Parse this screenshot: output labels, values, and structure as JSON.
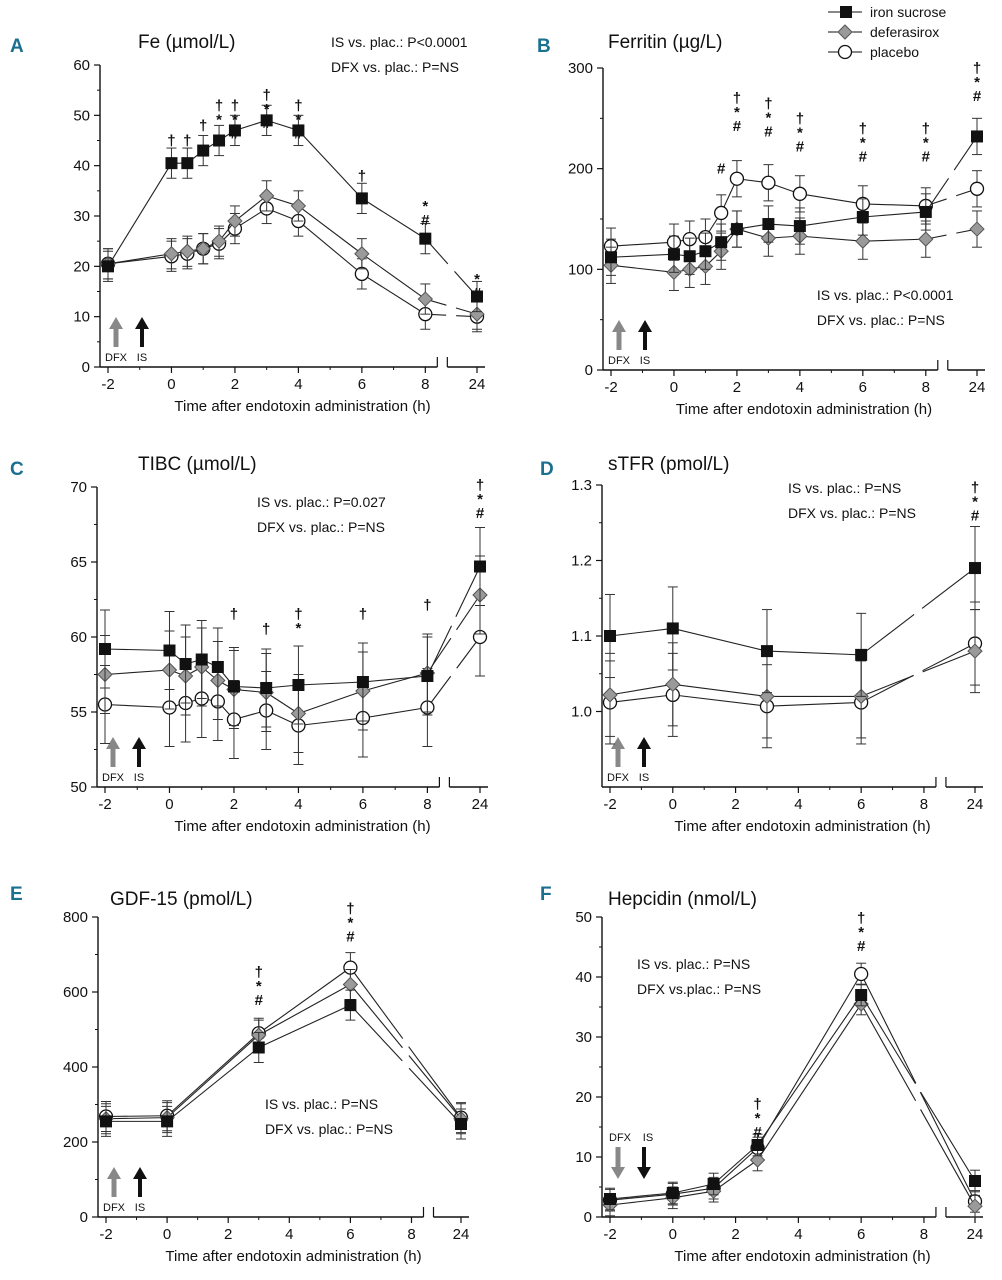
{
  "colors": {
    "panel_letter": "#1b6f8f",
    "iron_sucrose": "#111111",
    "deferasirox": "#9a9a9a",
    "placebo": "#ffffff",
    "dfx_arrow": "#888888",
    "is_arrow": "#111111"
  },
  "legend": {
    "iron_sucrose": "iron sucrose",
    "deferasirox": "deferasirox",
    "placebo": "placebo"
  },
  "common": {
    "xlabel": "Time after endotoxin administration (h)",
    "dfx_label": "DFX",
    "is_label": "IS"
  },
  "chart_data": [
    {
      "id": "A",
      "letter": "A",
      "type": "line",
      "title": "Fe (µmol/L)",
      "ylim": [
        0,
        60
      ],
      "yticks": [
        0,
        10,
        20,
        30,
        40,
        50,
        60
      ],
      "xticks": [
        -2,
        0,
        2,
        4,
        6,
        8,
        24
      ],
      "stats": [
        "IS vs. plac.: P<0.0001",
        "DFX vs. plac.: P=NS"
      ],
      "arrows_top": false,
      "err_sd": 3,
      "series": [
        {
          "name": "iron sucrose",
          "x": [
            -2,
            0,
            0.5,
            1,
            1.5,
            2,
            3,
            4,
            6,
            8,
            24
          ],
          "y": [
            20,
            40.5,
            40.5,
            43,
            45,
            47,
            49,
            47,
            33.5,
            25.5,
            14
          ]
        },
        {
          "name": "deferasirox",
          "x": [
            -2,
            0,
            0.5,
            1,
            1.5,
            2,
            3,
            4,
            6,
            8,
            24
          ],
          "y": [
            20.5,
            22.5,
            23,
            23.5,
            25,
            29,
            34,
            32,
            22.5,
            13.5,
            10.5
          ]
        },
        {
          "name": "placebo",
          "x": [
            -2,
            0,
            0.5,
            1,
            1.5,
            2,
            3,
            4,
            6,
            8,
            24
          ],
          "y": [
            20.5,
            22,
            22.5,
            23.5,
            24.5,
            27.5,
            31.5,
            29,
            18.5,
            10.5,
            10
          ]
        }
      ],
      "annotations": [
        {
          "x": 0,
          "y_top": 44,
          "symbols": [
            "†"
          ]
        },
        {
          "x": 0.5,
          "y_top": 44,
          "symbols": [
            "†"
          ]
        },
        {
          "x": 1,
          "y_top": 47,
          "symbols": [
            "†"
          ]
        },
        {
          "x": 1.5,
          "y_top": 51,
          "symbols": [
            "†",
            "*"
          ]
        },
        {
          "x": 2,
          "y_top": 51,
          "symbols": [
            "†",
            "*",
            "#"
          ]
        },
        {
          "x": 3,
          "y_top": 53,
          "symbols": [
            "†",
            "*",
            "#"
          ]
        },
        {
          "x": 4,
          "y_top": 51,
          "symbols": [
            "†",
            "*",
            "#"
          ]
        },
        {
          "x": 6,
          "y_top": 37,
          "symbols": [
            "†"
          ]
        },
        {
          "x": 8,
          "y_top": 31,
          "symbols": [
            "*",
            "#"
          ]
        },
        {
          "x": 24,
          "y_top": 16.5,
          "symbols": [
            "*",
            "#"
          ]
        }
      ]
    },
    {
      "id": "B",
      "letter": "B",
      "type": "line",
      "title": "Ferritin (µg/L)",
      "ylim": [
        0,
        300
      ],
      "yticks": [
        0,
        100,
        200,
        300
      ],
      "xticks": [
        -2,
        0,
        2,
        4,
        6,
        8,
        24
      ],
      "stats": [
        "IS vs. plac.: P<0.0001",
        "DFX vs. plac.: P=NS"
      ],
      "stats_pos": "bottom-right",
      "arrows_top": false,
      "err_sd": 18,
      "series": [
        {
          "name": "iron sucrose",
          "x": [
            -2,
            0,
            0.5,
            1,
            1.5,
            2,
            3,
            4,
            6,
            8,
            24
          ],
          "y": [
            112,
            115,
            113,
            118,
            127,
            140,
            145,
            143,
            152,
            157,
            232
          ]
        },
        {
          "name": "deferasirox",
          "x": [
            -2,
            0,
            0.5,
            1,
            1.5,
            2,
            3,
            4,
            6,
            8,
            24
          ],
          "y": [
            104,
            97,
            100,
            103,
            118,
            140,
            131,
            133,
            128,
            130,
            140
          ]
        },
        {
          "name": "placebo",
          "x": [
            -2,
            0,
            0.5,
            1,
            1.5,
            2,
            3,
            4,
            6,
            8,
            24
          ],
          "y": [
            123,
            127,
            130,
            132,
            156,
            190,
            186,
            175,
            165,
            163,
            180
          ]
        }
      ],
      "annotations": [
        {
          "x": 1.5,
          "y_top": 195,
          "symbols": [
            "#"
          ]
        },
        {
          "x": 2,
          "y_top": 265,
          "symbols": [
            "†",
            "*",
            "#"
          ]
        },
        {
          "x": 3,
          "y_top": 260,
          "symbols": [
            "†",
            "*",
            "#"
          ]
        },
        {
          "x": 4,
          "y_top": 245,
          "symbols": [
            "†",
            "*",
            "#"
          ]
        },
        {
          "x": 6,
          "y_top": 235,
          "symbols": [
            "†",
            "*",
            "#"
          ]
        },
        {
          "x": 8,
          "y_top": 235,
          "symbols": [
            "†",
            "*",
            "#"
          ]
        },
        {
          "x": 24,
          "y_top": 295,
          "symbols": [
            "†",
            "*",
            "#"
          ]
        }
      ]
    },
    {
      "id": "C",
      "letter": "C",
      "type": "line",
      "title": "TIBC (µmol/L)",
      "ylim": [
        50,
        70
      ],
      "yticks": [
        50,
        55,
        60,
        65,
        70
      ],
      "xticks": [
        -2,
        0,
        2,
        4,
        6,
        8,
        24
      ],
      "stats": [
        "IS vs. plac.: P=0.027",
        "DFX vs. plac.: P=NS"
      ],
      "arrows_top": false,
      "err_sd": 2.6,
      "series": [
        {
          "name": "iron sucrose",
          "x": [
            -2,
            0,
            0.5,
            1,
            1.5,
            2,
            3,
            4,
            6,
            8,
            24
          ],
          "y": [
            59.2,
            59.1,
            58.2,
            58.5,
            58,
            56.7,
            56.6,
            56.8,
            57,
            57.4,
            64.7
          ]
        },
        {
          "name": "deferasirox",
          "x": [
            -2,
            0,
            0.5,
            1,
            1.5,
            2,
            3,
            4,
            6,
            8,
            24
          ],
          "y": [
            57.5,
            57.8,
            57.4,
            58,
            57.1,
            56.5,
            56.3,
            54.9,
            56.4,
            57.6,
            62.8
          ]
        },
        {
          "name": "placebo",
          "x": [
            -2,
            0,
            0.5,
            1,
            1.5,
            2,
            3,
            4,
            6,
            8,
            24
          ],
          "y": [
            55.5,
            55.3,
            55.6,
            55.9,
            55.7,
            54.5,
            55.1,
            54.1,
            54.6,
            55.3,
            60
          ]
        }
      ],
      "annotations": [
        {
          "x": 2,
          "y_top": 61.2,
          "symbols": [
            "†"
          ]
        },
        {
          "x": 3,
          "y_top": 60.2,
          "symbols": [
            "†"
          ]
        },
        {
          "x": 4,
          "y_top": 61.2,
          "symbols": [
            "†",
            "*"
          ]
        },
        {
          "x": 6,
          "y_top": 61.2,
          "symbols": [
            "†"
          ]
        },
        {
          "x": 8,
          "y_top": 61.8,
          "symbols": [
            "†"
          ]
        },
        {
          "x": 24,
          "y_top": 69.8,
          "symbols": [
            "†",
            "*",
            "#"
          ]
        }
      ]
    },
    {
      "id": "D",
      "letter": "D",
      "type": "line",
      "title": "sTFR (pmol/L)",
      "ylim": [
        0.9,
        1.3
      ],
      "yticks": [
        1.0,
        1.1,
        1.2,
        1.3
      ],
      "ytick_labels": [
        "1.0",
        "1.1",
        "1.2",
        "1.3"
      ],
      "xticks": [
        -2,
        0,
        2,
        4,
        6,
        8,
        24
      ],
      "stats": [
        "IS vs. plac.: P=NS",
        "DFX vs. plac.: P=NS"
      ],
      "arrows_top": false,
      "err_sd": 0.055,
      "series": [
        {
          "name": "iron sucrose",
          "x": [
            -2,
            0,
            3,
            6,
            24
          ],
          "y": [
            1.1,
            1.11,
            1.08,
            1.075,
            1.19
          ]
        },
        {
          "name": "deferasirox",
          "x": [
            -2,
            0,
            3,
            6,
            24
          ],
          "y": [
            1.022,
            1.036,
            1.02,
            1.02,
            1.08
          ]
        },
        {
          "name": "placebo",
          "x": [
            -2,
            0,
            3,
            6,
            24
          ],
          "y": [
            1.012,
            1.022,
            1.007,
            1.012,
            1.09
          ]
        }
      ],
      "annotations": [
        {
          "x": 24,
          "y_top": 1.29,
          "symbols": [
            "†",
            "*",
            "#"
          ]
        }
      ]
    },
    {
      "id": "E",
      "letter": "E",
      "type": "line",
      "title": "GDF-15 (pmol/L)",
      "ylim": [
        0,
        800
      ],
      "yticks": [
        0,
        200,
        400,
        600,
        800
      ],
      "xticks": [
        -2,
        0,
        2,
        4,
        6,
        8,
        24
      ],
      "stats": [
        "IS vs. plac.: P=NS",
        "DFX vs. plac.: P=NS"
      ],
      "stats_pos": "bottom-middle",
      "arrows_top": false,
      "err_sd": 40,
      "series": [
        {
          "name": "iron sucrose",
          "x": [
            -2,
            0,
            3,
            6,
            24
          ],
          "y": [
            255,
            255,
            452,
            565,
            248
          ]
        },
        {
          "name": "deferasirox",
          "x": [
            -2,
            0,
            3,
            6,
            24
          ],
          "y": [
            262,
            265,
            485,
            620,
            262
          ]
        },
        {
          "name": "placebo",
          "x": [
            -2,
            0,
            3,
            6,
            24
          ],
          "y": [
            268,
            270,
            490,
            665,
            265
          ]
        }
      ],
      "annotations": [
        {
          "x": 3,
          "y_top": 640,
          "symbols": [
            "†",
            "*",
            "#"
          ]
        },
        {
          "x": 6,
          "y_top": 810,
          "symbols": [
            "†",
            "*",
            "#"
          ]
        }
      ]
    },
    {
      "id": "F",
      "letter": "F",
      "type": "line",
      "title": "Hepcidin (nmol/L)",
      "ylim": [
        0,
        50
      ],
      "yticks": [
        0,
        10,
        20,
        30,
        40,
        50
      ],
      "xticks": [
        -2,
        0,
        2,
        4,
        6,
        8,
        24
      ],
      "stats": [
        "IS vs. plac.: P=NS",
        "DFX vs.plac.: P=NS"
      ],
      "stats_pos": "top-left",
      "arrows_top": true,
      "err_sd": 1.8,
      "series": [
        {
          "name": "iron sucrose",
          "x": [
            -2,
            0,
            1.3,
            2.7,
            6,
            24
          ],
          "y": [
            3,
            4,
            5.5,
            12,
            37,
            6
          ]
        },
        {
          "name": "deferasirox",
          "x": [
            -2,
            0,
            1.3,
            2.7,
            6,
            24
          ],
          "y": [
            2,
            3.2,
            4.3,
            9.5,
            35.5,
            1.8
          ]
        },
        {
          "name": "placebo",
          "x": [
            -2,
            0,
            1.3,
            2.7,
            6,
            24
          ],
          "y": [
            2.8,
            3.8,
            4.8,
            11.5,
            40.5,
            2.6
          ]
        }
      ],
      "annotations": [
        {
          "x": 2.7,
          "y_top": 18,
          "symbols": [
            "†",
            "*",
            "#"
          ]
        },
        {
          "x": 6,
          "y_top": 49,
          "symbols": [
            "†",
            "*",
            "#"
          ]
        }
      ]
    }
  ]
}
